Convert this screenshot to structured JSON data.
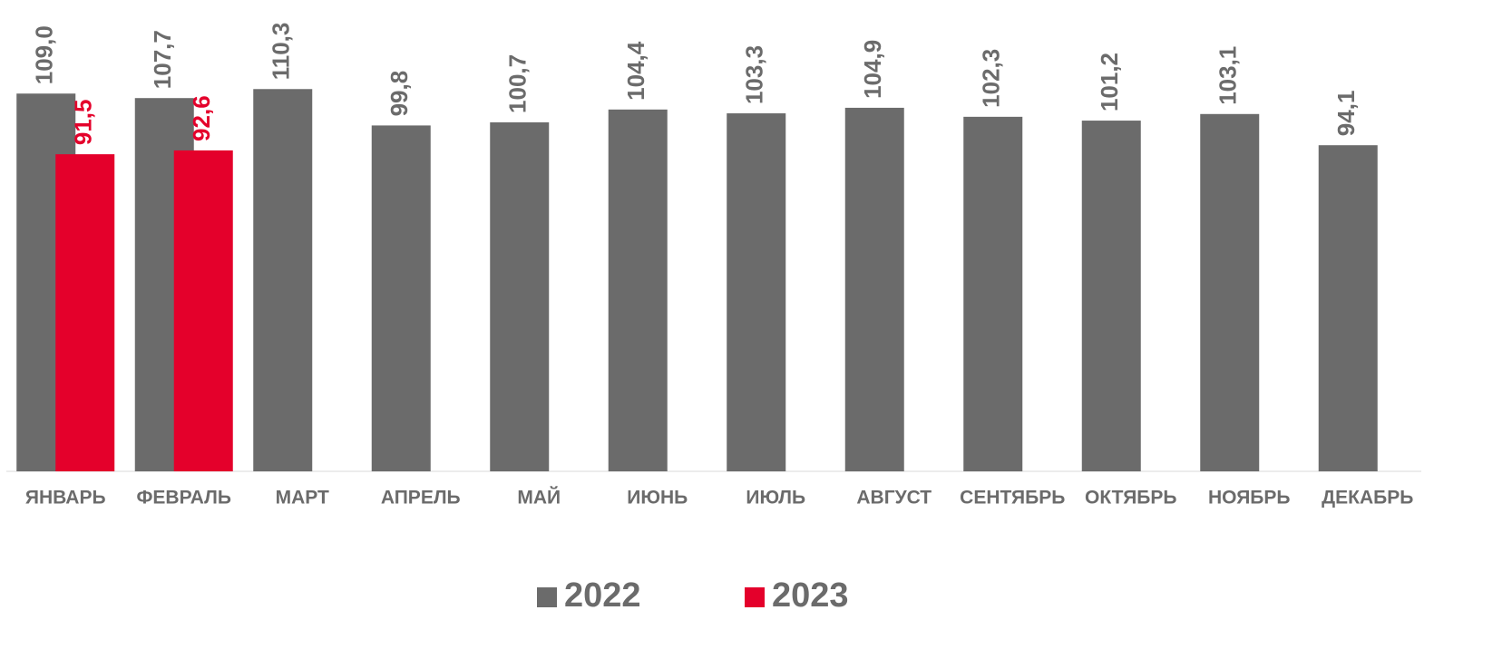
{
  "chart_data": {
    "type": "bar",
    "categories": [
      "ЯНВАРЬ",
      "ФЕВРАЛЬ",
      "МАРТ",
      "АПРЕЛЬ",
      "МАЙ",
      "ИЮНЬ",
      "ИЮЛЬ",
      "АВГУСТ",
      "СЕНТЯБРЬ",
      "ОКТЯБРЬ",
      "НОЯБРЬ",
      "ДЕКАБРЬ"
    ],
    "series": [
      {
        "name": "2022",
        "color": "#6b6b6b",
        "values": [
          109.0,
          107.7,
          110.3,
          99.8,
          100.7,
          104.4,
          103.3,
          104.9,
          102.3,
          101.2,
          103.1,
          94.1
        ],
        "value_labels": [
          "109,0",
          "107,7",
          "110,3",
          "99,8",
          "100,7",
          "104,4",
          "103,3",
          "104,9",
          "102,3",
          "101,2",
          "103,1",
          "94,1"
        ]
      },
      {
        "name": "2023",
        "color": "#e4002b",
        "values": [
          91.5,
          92.6,
          null,
          null,
          null,
          null,
          null,
          null,
          null,
          null,
          null,
          null
        ],
        "value_labels": [
          "91,5",
          "92,6",
          null,
          null,
          null,
          null,
          null,
          null,
          null,
          null,
          null,
          null
        ]
      }
    ],
    "ylim": [
      0,
      136
    ],
    "legend": "bottom"
  }
}
